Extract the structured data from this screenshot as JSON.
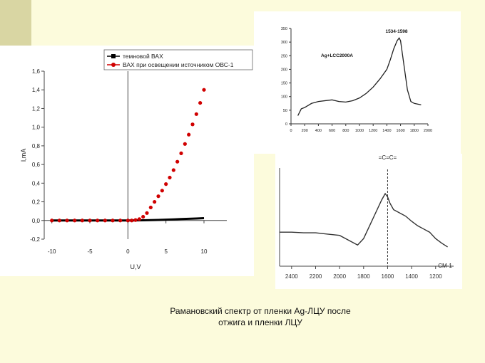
{
  "caption": {
    "line1": "Рамановский спектр от пленки Ag-ЛЦУ после",
    "line2": "отжига и пленки ЛЦУ"
  },
  "colors": {
    "background": "#fcfbdc",
    "dark_series": "#000000",
    "light_series": "#d00000",
    "spectrum": "#333333"
  },
  "chart_data": [
    {
      "type": "scatter",
      "xlabel": "U,V",
      "ylabel": "I,mA",
      "xlim": [
        -11,
        13
      ],
      "ylim": [
        -0.2,
        1.6
      ],
      "x_ticks": [
        "-10",
        "-5",
        "0",
        "5",
        "10"
      ],
      "y_ticks": [
        "-0,2",
        "0,0",
        "0,2",
        "0,4",
        "0,6",
        "0,8",
        "1,0",
        "1,2",
        "1,4",
        "1,6"
      ],
      "legend_position": "top",
      "series": [
        {
          "name": "темновой ВАХ",
          "color": "#000000",
          "x": [
            -10,
            -8,
            -6,
            -4,
            -2,
            0,
            1,
            2,
            3,
            4,
            5,
            6,
            7,
            8,
            9,
            10
          ],
          "y": [
            0,
            0,
            0,
            0,
            0,
            0,
            0.001,
            0.002,
            0.004,
            0.006,
            0.009,
            0.012,
            0.015,
            0.018,
            0.021,
            0.025
          ]
        },
        {
          "name": "ВАХ при освещении источником ОВС-1",
          "color": "#d00000",
          "x": [
            -10,
            -9,
            -8,
            -7,
            -6,
            -5,
            -4,
            -3,
            -2,
            -1,
            0,
            0.5,
            1,
            1.5,
            2,
            2.5,
            3,
            3.5,
            4,
            4.5,
            5,
            5.5,
            6,
            6.5,
            7,
            7.5,
            8,
            8.5,
            9,
            9.5,
            10
          ],
          "y": [
            0,
            0,
            0,
            0,
            0,
            0,
            0,
            0,
            0,
            0,
            0,
            0,
            0.005,
            0.015,
            0.04,
            0.08,
            0.14,
            0.2,
            0.26,
            0.32,
            0.39,
            0.46,
            0.54,
            0.63,
            0.72,
            0.82,
            0.92,
            1.03,
            1.14,
            1.26,
            1.4
          ]
        }
      ]
    },
    {
      "type": "line",
      "annotations": [
        "Ag+LCC2000A",
        "1534-1598"
      ],
      "xlim": [
        0,
        2000
      ],
      "ylim": [
        0,
        350
      ],
      "x_ticks": [
        "0",
        "200",
        "400",
        "600",
        "800",
        "1000",
        "1200",
        "1400",
        "1600",
        "1800",
        "2000"
      ],
      "y_ticks": [
        "0",
        "50",
        "100",
        "150",
        "200",
        "250",
        "300",
        "350"
      ],
      "series": [
        {
          "x": [
            100,
            150,
            200,
            300,
            400,
            500,
            600,
            700,
            800,
            900,
            1000,
            1100,
            1200,
            1300,
            1400,
            1450,
            1500,
            1550,
            1580,
            1600,
            1650,
            1700,
            1750,
            1800,
            1900
          ],
          "y": [
            30,
            55,
            60,
            75,
            82,
            85,
            88,
            82,
            80,
            85,
            95,
            112,
            135,
            165,
            200,
            235,
            275,
            305,
            315,
            305,
            215,
            125,
            82,
            75,
            70
          ]
        }
      ]
    },
    {
      "type": "line",
      "annotations": [
        "=C=C=",
        "CM-1"
      ],
      "xlim": [
        2500,
        1050
      ],
      "x_ticks": [
        "2400",
        "2200",
        "2000",
        "1800",
        "1600",
        "1400",
        "1200"
      ],
      "marker_line_x": 1600,
      "series": [
        {
          "x": [
            2500,
            2400,
            2300,
            2200,
            2100,
            2000,
            1900,
            1850,
            1800,
            1750,
            1700,
            1650,
            1620,
            1600,
            1580,
            1550,
            1500,
            1450,
            1400,
            1350,
            1300,
            1250,
            1200,
            1150,
            1100
          ],
          "y": [
            45,
            45,
            44,
            44,
            42,
            40,
            30,
            25,
            35,
            55,
            75,
            95,
            105,
            100,
            90,
            80,
            75,
            70,
            62,
            55,
            50,
            45,
            35,
            28,
            22
          ]
        }
      ]
    }
  ]
}
